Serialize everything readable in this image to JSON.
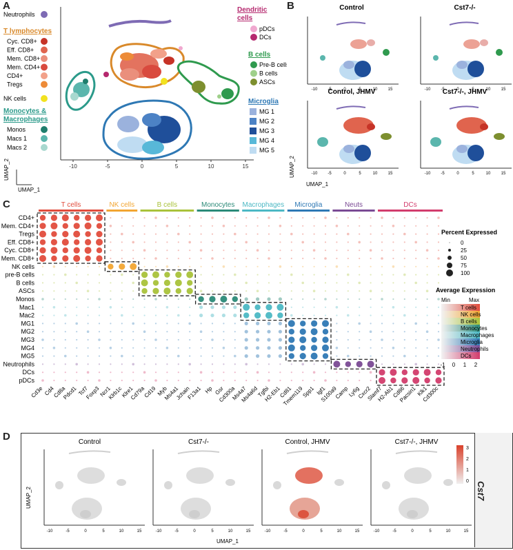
{
  "panels": {
    "A": "A",
    "B": "B",
    "C": "C",
    "D": "D"
  },
  "colors": {
    "neutrophils": "#7e6bb4",
    "cyc_cd8": "#c63327",
    "eff_cd8": "#e0644e",
    "mem_cd8": "#ea8f7c",
    "mem_cd4": "#d94a3e",
    "cd4": "#f2a18a",
    "tregs": "#ed8b38",
    "nk": "#f2e21f",
    "monos": "#1f7e6d",
    "macs1": "#5bb6ad",
    "macs2": "#a8d8cf",
    "pdcs": "#f0a8cf",
    "dcs": "#b5286e",
    "preb": "#2f9a4e",
    "bcells": "#9fd08a",
    "ascs": "#7d8f2f",
    "mg1": "#9bb2dd",
    "mg2": "#4c82c5",
    "mg3": "#1f4f9a",
    "mg4": "#58b8d8",
    "mg5": "#bfdcf2",
    "tcells": "#e14c3c",
    "nkcells": "#f2a531",
    "bcell_grp": "#a9c23a",
    "mono_grp": "#2b8a78",
    "macro_grp": "#4cb8c4",
    "micro_grp": "#2e78b4",
    "neut_grp": "#7a4a94",
    "dc_grp": "#d23c6c",
    "cst7_hi": "#d9412b",
    "cst7_lo": "#d9d9d9"
  },
  "panelA": {
    "legend_left": {
      "neutrophils": "Neutrophils",
      "t_title": "T lymphocytes",
      "t_items": [
        "Cyc. CD8+",
        "Eff. CD8+",
        "Mem. CD8+",
        "Mem. CD4+",
        "CD4+",
        "Tregs"
      ],
      "nk": "NK cells",
      "mono_title_1": "Monocytes &",
      "mono_title_2": "Macrophages",
      "mono_items": [
        "Monos",
        "Macs 1",
        "Macs 2"
      ]
    },
    "legend_right": {
      "dc_title_1": "Dendritic",
      "dc_title_2": "cells",
      "dc_items": [
        "pDCs",
        "DCs"
      ],
      "b_title": "B cells",
      "b_items": [
        "Pre-B cells",
        "B cells",
        "ASCs"
      ],
      "mg_title": "Microglia",
      "mg_items": [
        "MG 1",
        "MG 2",
        "MG 3",
        "MG 4",
        "MG 5"
      ]
    },
    "axis_ticks": [
      "-10",
      "-5",
      "0",
      "5",
      "10",
      "15"
    ],
    "xlabel": "UMAP_1",
    "ylabel": "UMAP_2"
  },
  "panelB": {
    "titles": [
      "Control",
      "Cst7-/-",
      "Control, JHMV",
      "Cst7-/-, JHMV"
    ],
    "axis_ticks": [
      "-10",
      "-5",
      "0",
      "5",
      "10",
      "15"
    ],
    "xlabel": "UMAP_1",
    "ylabel": "UMAP_2"
  },
  "chart_data": {
    "type": "dotplot",
    "title": "",
    "groups": [
      "T cells",
      "NK cells",
      "B cells",
      "Monocytes",
      "Macrophages",
      "Microglia",
      "Neuts",
      "DCs"
    ],
    "genes": [
      "Cd3e",
      "Cd4",
      "Cd8a",
      "Pdcd1",
      "Tcf7",
      "Foxp3",
      "Ncr1",
      "Klrb1c",
      "Klre1",
      "Cd79a",
      "Cd19",
      "Myb",
      "Ms4a1",
      "Jchain",
      "F13a1",
      "Hp",
      "Gsr",
      "Cd300a",
      "Ms4a7",
      "Ms4a6d",
      "Tgfbi",
      "H2-Eb1",
      "Cd81",
      "Tmem119",
      "Spp1",
      "Igf1",
      "S100a9",
      "Camp",
      "Ly6g",
      "Cxcr2",
      "Slamf7",
      "H2-Ab1",
      "Cd86",
      "Pacsin1",
      "Klk1",
      "Cd300c"
    ],
    "gene_groups": [
      0,
      0,
      0,
      0,
      0,
      0,
      1,
      1,
      1,
      2,
      2,
      2,
      2,
      2,
      3,
      3,
      3,
      3,
      4,
      4,
      4,
      4,
      5,
      5,
      5,
      5,
      6,
      6,
      6,
      6,
      7,
      7,
      7,
      7,
      7,
      7
    ],
    "clusters": [
      "CD4+",
      "Mem. CD4+",
      "Tregs",
      "Eff. CD8+",
      "Cyc. CD8+",
      "Mem. CD8+",
      "NK cells",
      "pre-B cells",
      "B cells",
      "ASCs",
      "Monos",
      "Mac1",
      "Mac2",
      "MG1",
      "MG2",
      "MG3",
      "MG4",
      "MG5",
      "Neutrophils",
      "DCs",
      "pDCs"
    ],
    "cluster_groups": [
      0,
      0,
      0,
      0,
      0,
      0,
      1,
      2,
      2,
      2,
      3,
      4,
      4,
      5,
      5,
      5,
      5,
      5,
      6,
      7,
      7
    ],
    "size_legend_title": "Percent Expressed",
    "size_legend": [
      "0",
      "25",
      "50",
      "75",
      "100"
    ],
    "color_legend_title": "Average Expression",
    "color_legend_min": "Min",
    "color_legend_max": "Max",
    "color_legend_items": [
      "T cells",
      "NK cells",
      "B cells",
      "Monocytes",
      "Macrophages",
      "Microglia",
      "Neutrophils",
      "DCs"
    ],
    "color_scale_ticks": [
      "-1",
      "0",
      "1",
      "2"
    ]
  },
  "panelD": {
    "titles": [
      "Control",
      "Cst7-/-",
      "Control, JHMV",
      "Cst7-/-, JHMV"
    ],
    "gene": "Cst7",
    "scale_ticks": [
      "3",
      "2",
      "1",
      "0"
    ],
    "axis_ticks": [
      "-10",
      "-5",
      "0",
      "5",
      "10",
      "15"
    ],
    "xlabel": "UMAP_1",
    "ylabel": "UMAP_2"
  }
}
